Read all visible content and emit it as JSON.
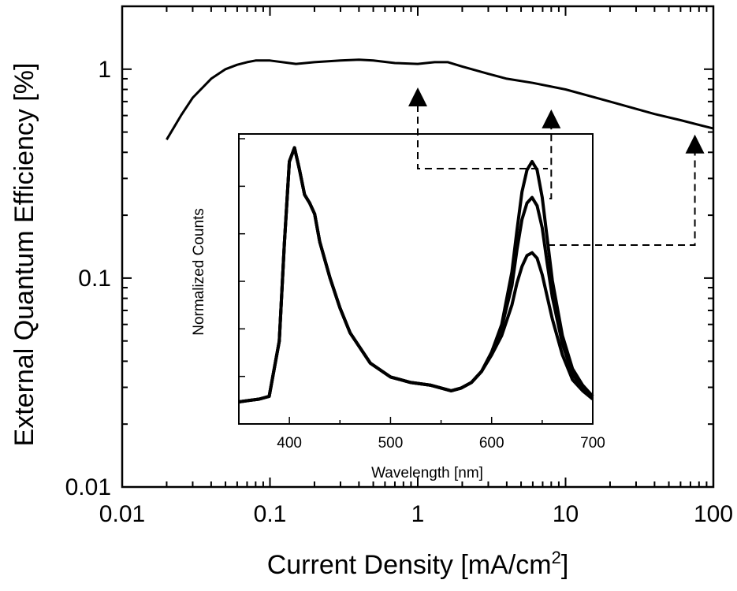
{
  "chart_data": [
    {
      "type": "line",
      "xlabel": "Current Density [mA/cm",
      "xlabel_sup": "2",
      "xlabel_end": "]",
      "ylabel": "External Quantum Efficiency [%]",
      "x_scale": "log",
      "y_scale": "log",
      "xlim": [
        0.01,
        100
      ],
      "ylim": [
        0.01,
        2
      ],
      "x_ticks": [
        0.01,
        0.1,
        1,
        10,
        100
      ],
      "x_tick_labels": [
        "0.01",
        "0.1",
        "1",
        "10",
        "100"
      ],
      "y_ticks": [
        0.01,
        0.1,
        1
      ],
      "y_tick_labels": [
        "0.01",
        "0.1",
        "1"
      ],
      "grid": false,
      "series": [
        {
          "x": [
            0.02,
            0.025,
            0.03,
            0.04,
            0.05,
            0.06,
            0.07,
            0.08,
            0.1,
            0.15,
            0.2,
            0.3,
            0.4,
            0.5,
            0.7,
            1.0,
            1.3,
            1.6,
            2.0,
            3.0,
            4.0,
            6.0,
            10,
            20,
            40,
            60,
            100
          ],
          "y": [
            0.46,
            0.6,
            0.73,
            0.9,
            1.0,
            1.05,
            1.08,
            1.1,
            1.1,
            1.06,
            1.08,
            1.1,
            1.11,
            1.1,
            1.07,
            1.06,
            1.08,
            1.08,
            1.03,
            0.95,
            0.9,
            0.86,
            0.8,
            0.7,
            0.61,
            0.57,
            0.52
          ]
        }
      ],
      "markers": [
        {
          "x": 1.0,
          "y": 0.79
        },
        {
          "x": 8.0,
          "y": 0.62
        },
        {
          "x": 75,
          "y": 0.47
        }
      ]
    },
    {
      "type": "line",
      "xlabel": "Wavelength [nm]",
      "ylabel": "Normalized Counts",
      "xlim": [
        350,
        700
      ],
      "ylim": [
        0,
        1.05
      ],
      "x_ticks": [
        400,
        500,
        600,
        700
      ],
      "x_tick_labels": [
        "400",
        "500",
        "600",
        "700"
      ],
      "series": [
        {
          "x": [
            350,
            360,
            370,
            380,
            390,
            395,
            400,
            405,
            410,
            415,
            420,
            425,
            430,
            440,
            450,
            460,
            480,
            500,
            520,
            540,
            560,
            570,
            580,
            590,
            600,
            610,
            620,
            625,
            630,
            635,
            640,
            645,
            650,
            655,
            660,
            670,
            680,
            690,
            700
          ],
          "y": [
            0.08,
            0.085,
            0.09,
            0.1,
            0.3,
            0.65,
            0.95,
            1.0,
            0.92,
            0.83,
            0.8,
            0.76,
            0.66,
            0.53,
            0.42,
            0.33,
            0.22,
            0.17,
            0.15,
            0.14,
            0.12,
            0.13,
            0.15,
            0.19,
            0.26,
            0.36,
            0.55,
            0.7,
            0.84,
            0.92,
            0.95,
            0.92,
            0.82,
            0.67,
            0.52,
            0.32,
            0.2,
            0.14,
            0.1
          ]
        },
        {
          "x": [
            350,
            360,
            370,
            380,
            390,
            395,
            400,
            405,
            410,
            415,
            420,
            425,
            430,
            440,
            450,
            460,
            480,
            500,
            520,
            540,
            560,
            570,
            580,
            590,
            600,
            610,
            620,
            625,
            630,
            635,
            640,
            645,
            650,
            655,
            660,
            670,
            680,
            690,
            700
          ],
          "y": [
            0.08,
            0.085,
            0.09,
            0.1,
            0.3,
            0.65,
            0.95,
            1.0,
            0.92,
            0.83,
            0.8,
            0.76,
            0.66,
            0.53,
            0.42,
            0.33,
            0.22,
            0.17,
            0.15,
            0.14,
            0.12,
            0.13,
            0.15,
            0.19,
            0.26,
            0.35,
            0.5,
            0.63,
            0.74,
            0.8,
            0.82,
            0.79,
            0.71,
            0.58,
            0.46,
            0.29,
            0.18,
            0.13,
            0.1
          ]
        },
        {
          "x": [
            350,
            360,
            370,
            380,
            390,
            395,
            400,
            405,
            410,
            415,
            420,
            425,
            430,
            440,
            450,
            460,
            480,
            500,
            520,
            540,
            560,
            570,
            580,
            590,
            600,
            610,
            620,
            625,
            630,
            635,
            640,
            645,
            650,
            655,
            660,
            670,
            680,
            690,
            700
          ],
          "y": [
            0.08,
            0.085,
            0.09,
            0.1,
            0.3,
            0.65,
            0.95,
            1.0,
            0.92,
            0.83,
            0.8,
            0.76,
            0.66,
            0.53,
            0.42,
            0.33,
            0.22,
            0.17,
            0.15,
            0.14,
            0.12,
            0.13,
            0.15,
            0.19,
            0.25,
            0.32,
            0.43,
            0.51,
            0.57,
            0.61,
            0.62,
            0.6,
            0.54,
            0.46,
            0.38,
            0.25,
            0.16,
            0.12,
            0.09
          ]
        }
      ]
    }
  ]
}
